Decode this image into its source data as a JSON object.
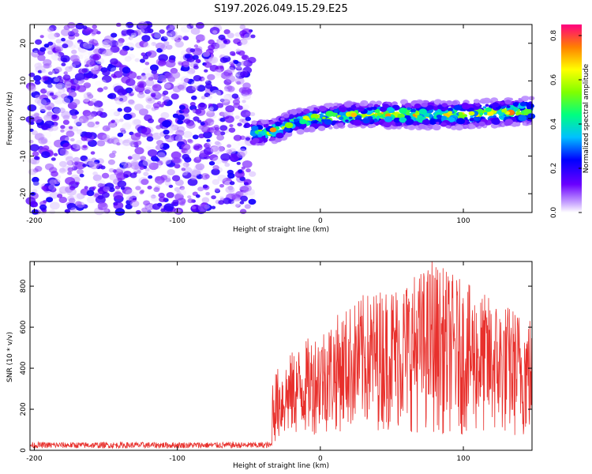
{
  "title": "S197.2026.049.15.29.E25",
  "chart_data": [
    {
      "type": "heatmap",
      "title": "S197.2026.049.15.29.E25",
      "xlabel": "Height of straight line (km)",
      "ylabel": "Frequency (Hz)",
      "xlim": [
        -203,
        148
      ],
      "ylim": [
        -25,
        25
      ],
      "x_ticks": [
        -200,
        -100,
        0,
        100
      ],
      "y_ticks": [
        -20,
        -10,
        0,
        10,
        20
      ],
      "noise_region": {
        "x_from": -203,
        "x_to": -47,
        "y_from": -25,
        "y_to": 25,
        "amplitude_range": [
          0.0,
          0.22
        ]
      },
      "signal_band": [
        {
          "x": -47,
          "center": -4,
          "halfwidth": 3
        },
        {
          "x": -30,
          "center": -3,
          "halfwidth": 3
        },
        {
          "x": -20,
          "center": -1,
          "halfwidth": 3
        },
        {
          "x": -5,
          "center": 0,
          "halfwidth": 3
        },
        {
          "x": 20,
          "center": 1,
          "halfwidth": 3
        },
        {
          "x": 60,
          "center": 1,
          "halfwidth": 3.5
        },
        {
          "x": 100,
          "center": 1,
          "halfwidth": 3.5
        },
        {
          "x": 148,
          "center": 2,
          "halfwidth": 3.5
        }
      ],
      "signal_amplitude_range": [
        0.05,
        0.8
      ],
      "colorbar": {
        "label": "Normalized spectral amplitude",
        "range": [
          0.0,
          0.85
        ],
        "ticks": [
          "0.0",
          "0.2",
          "0.4",
          "0.6",
          "0.8"
        ]
      }
    },
    {
      "type": "line",
      "xlabel": "Height of straight line (km)",
      "ylabel": "SNR (10 * v/v)",
      "xlim": [
        -203,
        148
      ],
      "ylim": [
        0,
        920
      ],
      "x_ticks": [
        -200,
        -100,
        0,
        100
      ],
      "y_ticks": [
        0,
        200,
        400,
        600,
        800
      ],
      "series": [
        {
          "name": "SNR",
          "color": "#e8302c",
          "baseline_before_x": -34,
          "baseline_range": [
            10,
            40
          ],
          "envelope": [
            {
              "x": -34,
              "low": 30,
              "high": 370
            },
            {
              "x": -20,
              "low": 60,
              "high": 480
            },
            {
              "x": 0,
              "low": 80,
              "high": 600
            },
            {
              "x": 30,
              "low": 100,
              "high": 760
            },
            {
              "x": 60,
              "low": 90,
              "high": 840
            },
            {
              "x": 80,
              "low": 80,
              "high": 920
            },
            {
              "x": 110,
              "low": 70,
              "high": 780
            },
            {
              "x": 148,
              "low": 50,
              "high": 660
            }
          ],
          "peak": {
            "x": 78,
            "y": 920
          }
        }
      ]
    }
  ]
}
